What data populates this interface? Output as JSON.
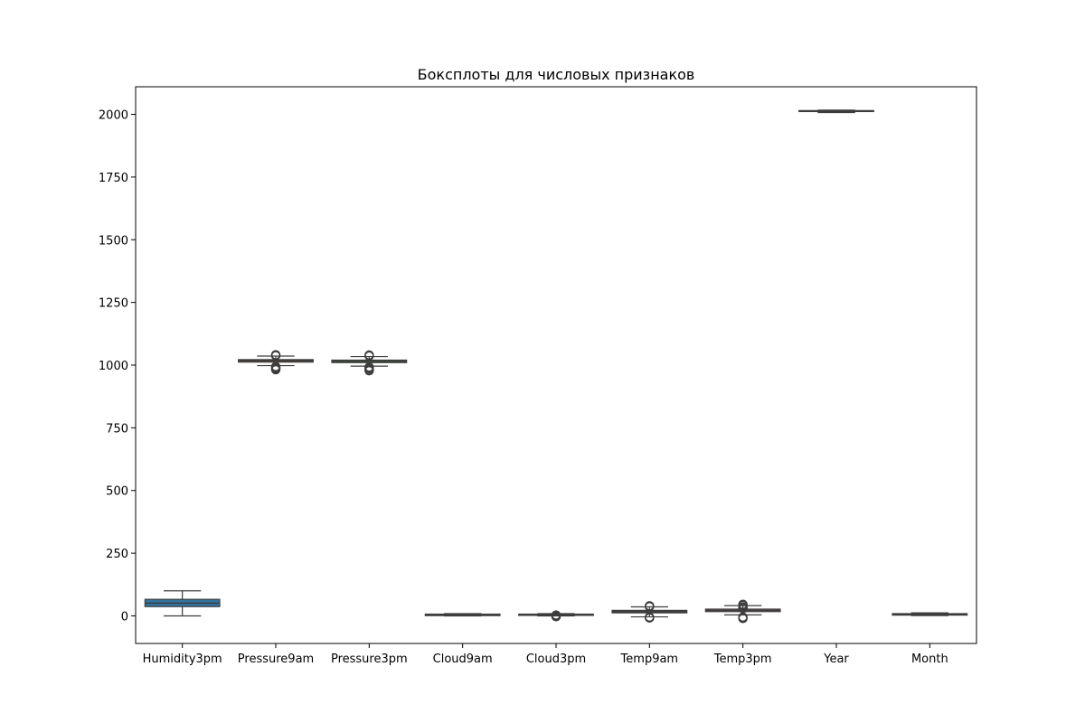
{
  "chart_data": {
    "type": "boxplot",
    "title": "Боксплоты для числовых признаков",
    "xlabel": "",
    "ylabel": "",
    "ylim": [
      -110,
      2110
    ],
    "yticks": [
      0,
      250,
      500,
      750,
      1000,
      1250,
      1500,
      1750,
      2000
    ],
    "grid": false,
    "categories": [
      "Humidity3pm",
      "Pressure9am",
      "Pressure3pm",
      "Cloud9am",
      "Cloud3pm",
      "Temp9am",
      "Temp3pm",
      "Year",
      "Month"
    ],
    "boxes": [
      {
        "name": "Humidity3pm",
        "color": "#3274a1",
        "whislo": 0,
        "q1": 37,
        "med": 51,
        "q3": 66,
        "whishi": 100,
        "outliers": []
      },
      {
        "name": "Pressure9am",
        "color": "#e1812c",
        "whislo": 998,
        "q1": 1012,
        "med": 1017,
        "q3": 1022,
        "whishi": 1036,
        "outliers": [
          982,
          986,
          990,
          994,
          1038,
          1041
        ]
      },
      {
        "name": "Pressure3pm",
        "color": "#3a923a",
        "whislo": 996,
        "q1": 1010,
        "med": 1015,
        "q3": 1020,
        "whishi": 1034,
        "outliers": [
          978,
          983,
          988,
          992,
          1037,
          1040
        ]
      },
      {
        "name": "Cloud9am",
        "color": "#c03d3e",
        "whislo": 0,
        "q1": 1,
        "med": 5,
        "q3": 7,
        "whishi": 9,
        "outliers": []
      },
      {
        "name": "Cloud3pm",
        "color": "#9372b2",
        "whislo": 0,
        "q1": 2,
        "med": 5,
        "q3": 7,
        "whishi": 9,
        "outliers": [
          -3,
          0,
          3
        ]
      },
      {
        "name": "Temp9am",
        "color": "#845b53",
        "whislo": -4,
        "q1": 12,
        "med": 17,
        "q3": 22,
        "whishi": 36,
        "outliers": [
          -8,
          -5,
          37,
          40
        ]
      },
      {
        "name": "Temp3pm",
        "color": "#d684bd",
        "whislo": 4,
        "q1": 17,
        "med": 22,
        "q3": 27,
        "whishi": 41,
        "outliers": [
          -10,
          -5,
          30,
          35,
          42,
          46
        ]
      },
      {
        "name": "Year",
        "color": "#7f7f7f",
        "whislo": 2007,
        "q1": 2011,
        "med": 2013,
        "q3": 2015,
        "whishi": 2017,
        "outliers": []
      },
      {
        "name": "Month",
        "color": "#a9aa35",
        "whislo": 1,
        "q1": 3,
        "med": 6,
        "q3": 9,
        "whishi": 12,
        "outliers": []
      }
    ]
  }
}
